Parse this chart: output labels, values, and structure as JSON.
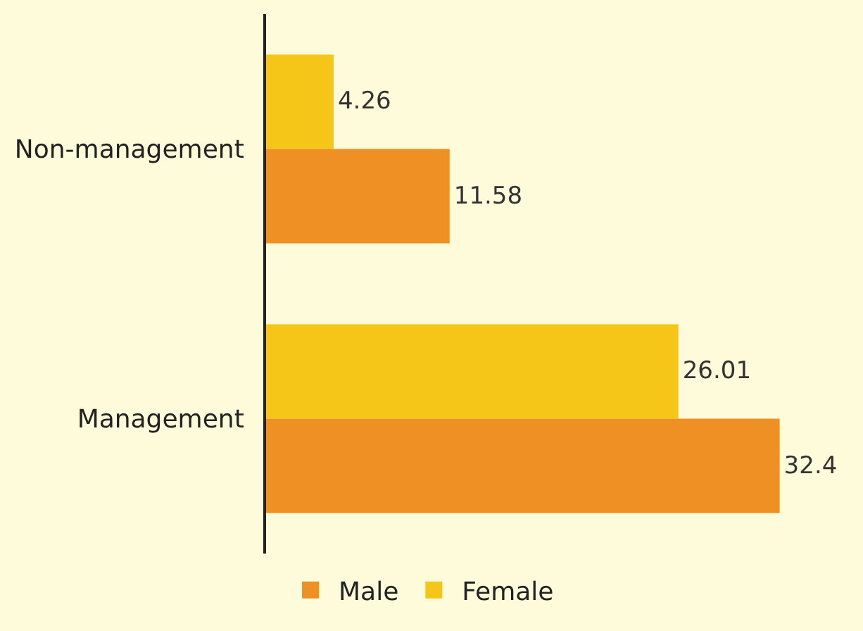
{
  "chart_data": {
    "type": "bar",
    "orientation": "horizontal",
    "categories": [
      "Non-management",
      "Management"
    ],
    "series": [
      {
        "name": "Male",
        "color": "#ef9024",
        "values": [
          11.58,
          32.4
        ]
      },
      {
        "name": "Female",
        "color": "#f5c518",
        "values": [
          4.26,
          26.01
        ]
      }
    ],
    "data_labels": true,
    "legend": "bottom",
    "grid": false
  }
}
